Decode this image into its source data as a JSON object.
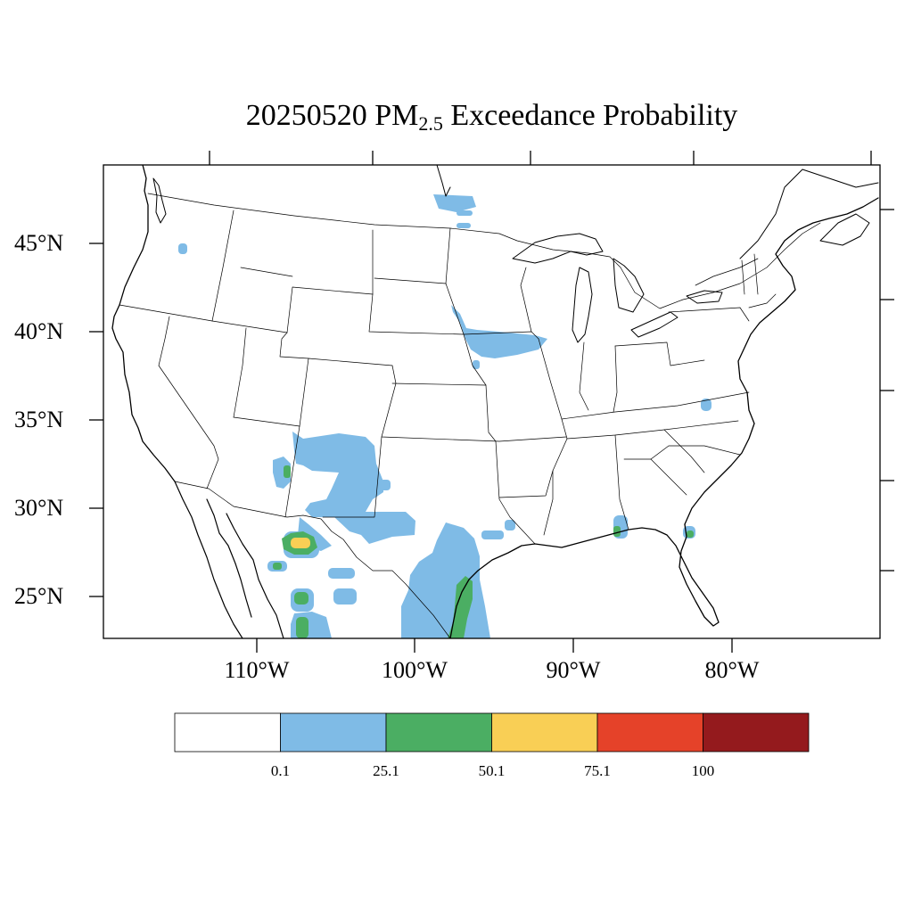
{
  "title": {
    "date": "20250520",
    "pm": "PM",
    "sub": "2.5",
    "rest": "Exceedance Probability"
  },
  "axes": {
    "lat_labels": [
      "45°N",
      "40°N",
      "35°N",
      "30°N",
      "25°N"
    ],
    "lat_values": [
      45,
      40,
      35,
      30,
      25
    ],
    "lon_labels": [
      "110°W",
      "100°W",
      "90°W",
      "80°W"
    ],
    "lon_values": [
      -110,
      -100,
      -90,
      -80
    ]
  },
  "colorbar": {
    "colors": [
      "#ffffff",
      "#7fbbe6",
      "#4bae63",
      "#f9cf55",
      "#e54229",
      "#941a1d"
    ],
    "labels": [
      "0.1",
      "25.1",
      "50.1",
      "75.1",
      "100"
    ]
  },
  "map_colors": {
    "low": "#7fbbe6",
    "mid": "#4bae63",
    "high": "#f9cf55"
  }
}
